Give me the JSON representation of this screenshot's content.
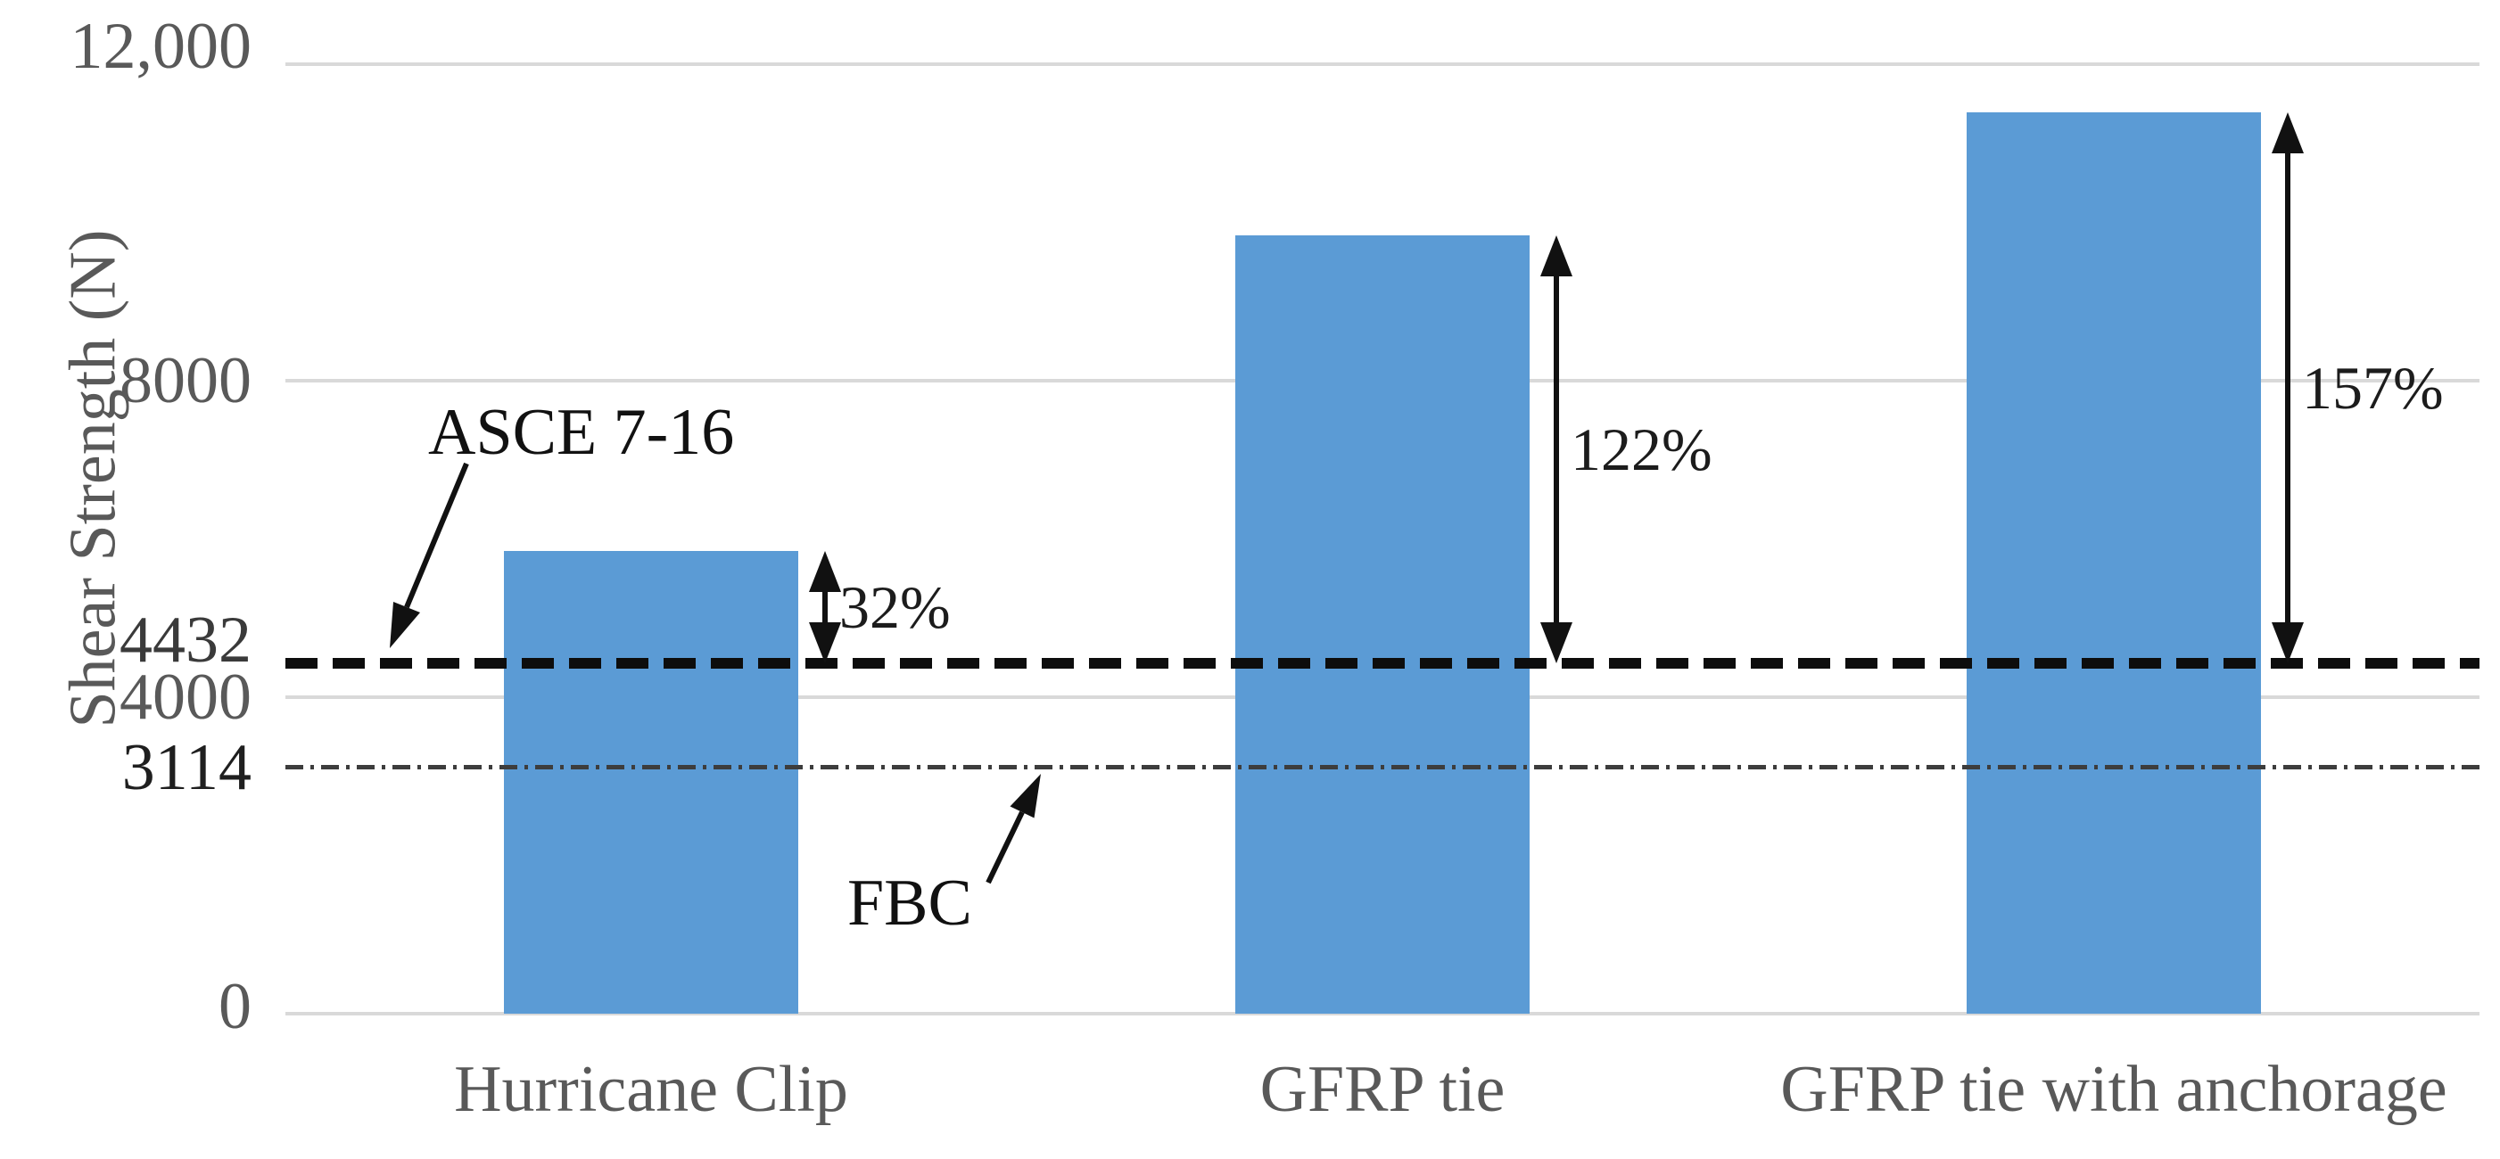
{
  "chart_data": {
    "type": "bar",
    "title": "",
    "ylabel": "Shear Strength (N)",
    "xlabel": "",
    "categories": [
      "Hurricane Clip",
      "GFRP tie",
      "GFRP tie with anchorage"
    ],
    "values": [
      5850,
      9840,
      11390
    ],
    "bar_color": "#5B9BD5",
    "ylim": [
      0,
      12000
    ],
    "grid": true,
    "gridline_values": [
      12000,
      8000,
      4000,
      0
    ],
    "gridline_color": "#d9d9d9",
    "legend": "none",
    "yticks": [
      {
        "label": "12,000",
        "value": 12000,
        "color": "#595959"
      },
      {
        "label": "8000",
        "value": 8000,
        "color": "#595959"
      },
      {
        "label": "4432",
        "value": 4432,
        "color": "#3a3a3a"
      },
      {
        "label": "4000",
        "value": 4000,
        "color": "#595959"
      },
      {
        "label": "3114",
        "value": 3114,
        "color": "#1f1f1f"
      },
      {
        "label": "0",
        "value": 0,
        "color": "#595959"
      }
    ],
    "reference_lines": [
      {
        "name": "ASCE 7-16",
        "value": 4432,
        "style": "dashed",
        "color": "#0d0d0d"
      },
      {
        "name": "FBC",
        "value": 3114,
        "style": "dash-dot",
        "color": "#3d3d3d"
      }
    ],
    "annotations": [
      {
        "category": "Hurricane Clip",
        "label": "32%",
        "from_value": 4432,
        "to_value": 5850
      },
      {
        "category": "GFRP tie",
        "label": "122%",
        "from_value": 4432,
        "to_value": 9840
      },
      {
        "category": "GFRP tie with anchorage",
        "label": "157%",
        "from_value": 4432,
        "to_value": 11390
      }
    ]
  }
}
